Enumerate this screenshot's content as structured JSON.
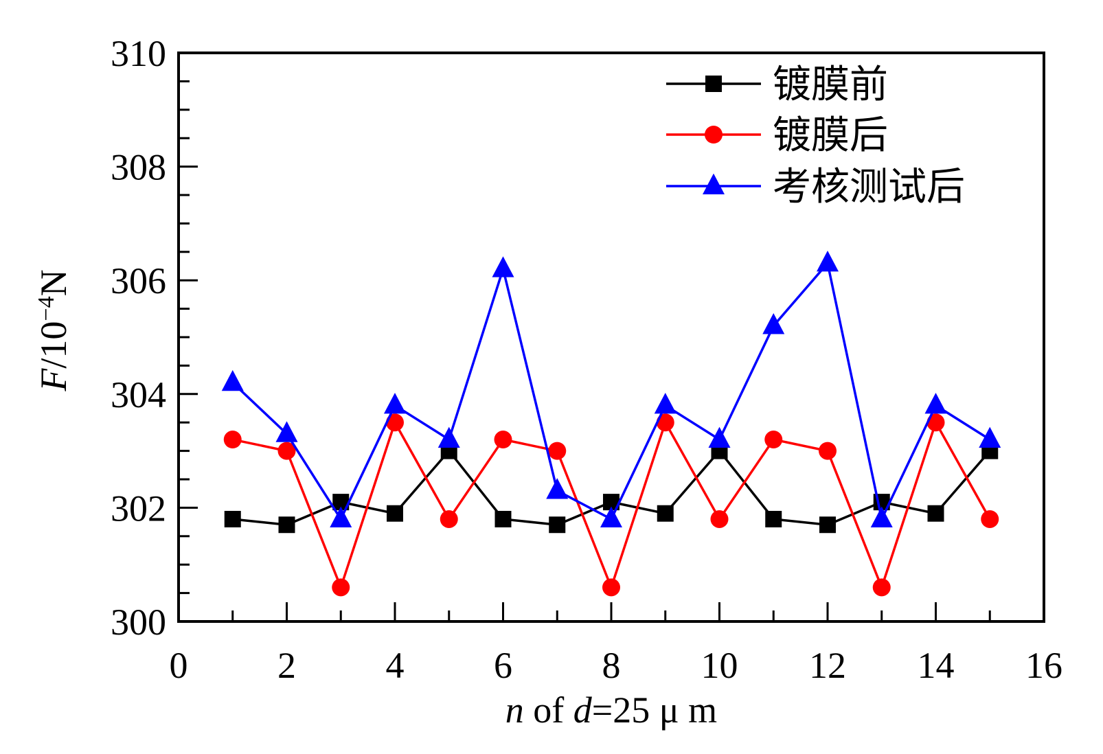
{
  "chart_data": {
    "type": "line",
    "xlabel_parts": {
      "var_n": "n",
      "of": " of ",
      "var_d": "d",
      "rest": "=25 μ m"
    },
    "ylabel_parts": {
      "var_f": "F",
      "slash": "/10",
      "exp": "−4",
      "unit": "N"
    },
    "xlim": [
      0,
      16
    ],
    "ylim": [
      300,
      310
    ],
    "x_ticks": [
      0,
      2,
      4,
      6,
      8,
      10,
      12,
      14,
      16
    ],
    "x_tick_labels": [
      "0",
      "2",
      "4",
      "6",
      "8",
      "10",
      "12",
      "14",
      "16"
    ],
    "y_ticks": [
      300,
      302,
      304,
      306,
      308,
      310
    ],
    "y_tick_labels": [
      "300",
      "302",
      "304",
      "306",
      "308",
      "310"
    ],
    "x": [
      1,
      2,
      3,
      4,
      5,
      6,
      7,
      8,
      9,
      10,
      11,
      12,
      13,
      14,
      15
    ],
    "series": [
      {
        "name": "镀膜前",
        "color": "#000000",
        "marker": "square",
        "values": [
          301.8,
          301.7,
          302.1,
          301.9,
          303.0,
          301.8,
          301.7,
          302.1,
          301.9,
          303.0,
          301.8,
          301.7,
          302.1,
          301.9,
          303.0
        ]
      },
      {
        "name": "镀膜后",
        "color": "#ff0000",
        "marker": "circle",
        "values": [
          303.2,
          303.0,
          300.6,
          303.5,
          301.8,
          303.2,
          303.0,
          300.6,
          303.5,
          301.8,
          303.2,
          303.0,
          300.6,
          303.5,
          301.8
        ]
      },
      {
        "name": "考核测试后",
        "color": "#0000ff",
        "marker": "triangle",
        "values": [
          304.2,
          303.3,
          301.8,
          303.8,
          303.2,
          306.2,
          302.3,
          301.8,
          303.8,
          303.2,
          305.2,
          306.3,
          301.8,
          303.8,
          303.2
        ]
      }
    ],
    "legend_position": "top-right",
    "grid": false
  }
}
